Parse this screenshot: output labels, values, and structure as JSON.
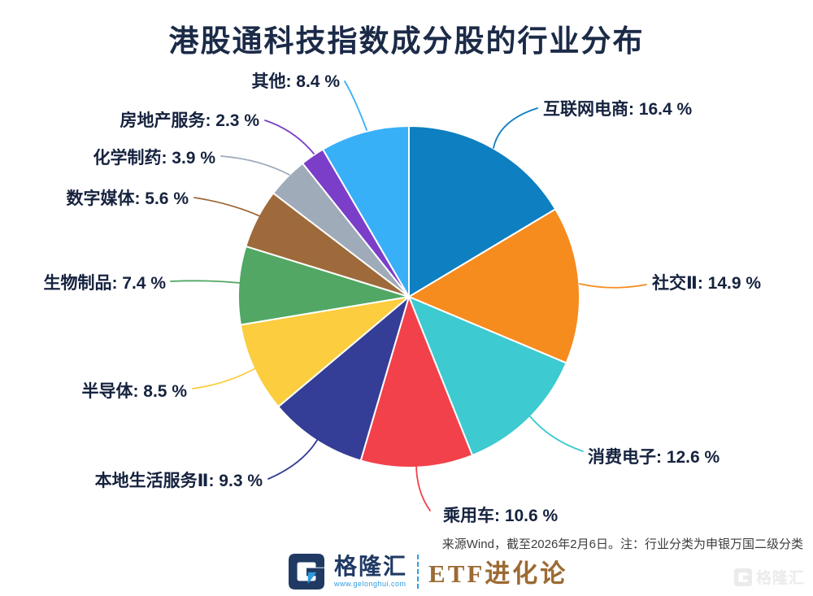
{
  "title": "港股通科技指数成分股的行业分布",
  "chart_data": {
    "type": "pie",
    "title": "港股通科技指数成分股的行业分布",
    "start_angle_deg": 0,
    "direction": "clockwise",
    "label_format": "{label}: {value} %",
    "legend_position": "none",
    "slices": [
      {
        "label": "互联网电商",
        "value": 16.4,
        "color": "#0e7fc0"
      },
      {
        "label": "社交Ⅱ",
        "value": 14.9,
        "color": "#f68b1e"
      },
      {
        "label": "消费电子",
        "value": 12.6,
        "color": "#3dcad0"
      },
      {
        "label": "乘用车",
        "value": 10.6,
        "color": "#f2414b"
      },
      {
        "label": "本地生活服务Ⅱ",
        "value": 9.3,
        "color": "#343e97"
      },
      {
        "label": "半导体",
        "value": 8.5,
        "color": "#fbcd3f"
      },
      {
        "label": "生物制品",
        "value": 7.4,
        "color": "#51a763"
      },
      {
        "label": "数字媒体",
        "value": 5.6,
        "color": "#9e6a3b"
      },
      {
        "label": "化学制药",
        "value": 3.9,
        "color": "#9fabb9"
      },
      {
        "label": "房地产服务",
        "value": 2.3,
        "color": "#7a3ec8"
      },
      {
        "label": "其他",
        "value": 8.4,
        "color": "#38b0f8"
      }
    ]
  },
  "footer": {
    "note": "来源Wind，截至2026年2月6日。注：行业分类为申银万国二级分类"
  },
  "branding": {
    "logo_mark": "G",
    "logo_text": "格隆汇",
    "logo_url": "www.gelonghui.com",
    "partner_text": "ETF进化论",
    "watermark_text": "格隆汇"
  },
  "colors": {
    "title_text": "#1b2a47",
    "label_text": "#16233f",
    "note_text": "#3d3d3d",
    "brand_navy": "#203a64",
    "brand_blue": "#2f9be0",
    "partner_brown": "#9c6a33",
    "background": "#ffffff"
  }
}
